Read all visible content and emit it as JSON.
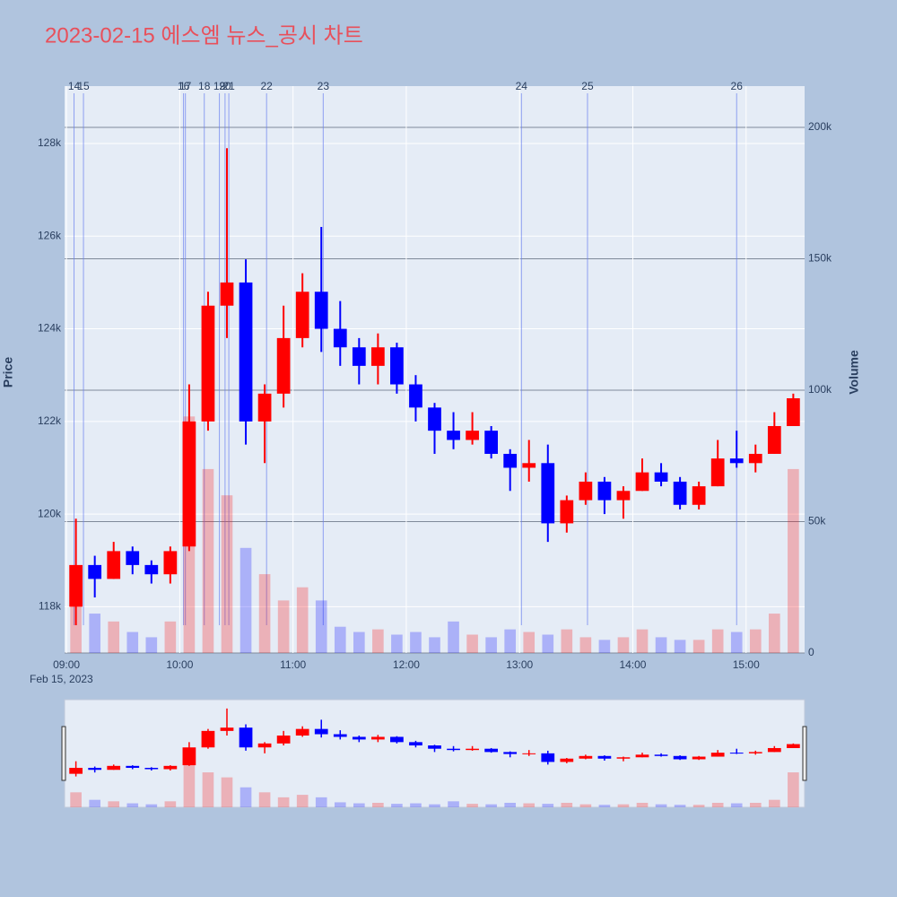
{
  "chart_data": {
    "type": "candlestick",
    "title": "2023-02-15 에스엠 뉴스_공시 차트",
    "y_label": "Price",
    "y2_label": "Volume",
    "x_date_label": "Feb 15, 2023",
    "up_color": "#ff0000",
    "down_color": "#0000ff",
    "x": [
      "2023-02-15 09:00",
      "2023-02-15 09:10",
      "2023-02-15 09:20",
      "2023-02-15 09:30",
      "2023-02-15 09:40",
      "2023-02-15 09:50",
      "2023-02-15 10:00",
      "2023-02-15 10:10",
      "2023-02-15 10:20",
      "2023-02-15 10:30",
      "2023-02-15 10:40",
      "2023-02-15 10:50",
      "2023-02-15 11:00",
      "2023-02-15 11:10",
      "2023-02-15 11:20",
      "2023-02-15 11:30",
      "2023-02-15 11:40",
      "2023-02-15 11:50",
      "2023-02-15 12:00",
      "2023-02-15 12:10",
      "2023-02-15 12:20",
      "2023-02-15 12:30",
      "2023-02-15 12:40",
      "2023-02-15 12:50",
      "2023-02-15 13:00",
      "2023-02-15 13:10",
      "2023-02-15 13:20",
      "2023-02-15 13:30",
      "2023-02-15 13:40",
      "2023-02-15 13:50",
      "2023-02-15 14:00",
      "2023-02-15 14:10",
      "2023-02-15 14:20",
      "2023-02-15 14:30",
      "2023-02-15 14:40",
      "2023-02-15 14:50",
      "2023-02-15 15:00",
      "2023-02-15 15:10",
      "2023-02-15 15:20"
    ],
    "open": [
      118000,
      118900,
      118600,
      119200,
      118900,
      118700,
      119300,
      122000,
      124500,
      125000,
      122000,
      122600,
      123800,
      124800,
      124000,
      123600,
      123200,
      123600,
      122800,
      122300,
      121800,
      121600,
      121800,
      121300,
      121000,
      121100,
      119800,
      120300,
      120700,
      120300,
      120500,
      120900,
      120700,
      120200,
      120600,
      121200,
      121100,
      121300,
      121900
    ],
    "high": [
      119900,
      119100,
      119400,
      119300,
      119000,
      119300,
      122800,
      124800,
      127900,
      125500,
      122800,
      124500,
      125200,
      126200,
      124600,
      123800,
      123900,
      123700,
      123000,
      122400,
      122200,
      122200,
      121900,
      121400,
      121600,
      121500,
      120400,
      120900,
      120800,
      120600,
      121200,
      121100,
      120800,
      120700,
      121600,
      121800,
      121500,
      122200,
      122600
    ],
    "low": [
      117600,
      118200,
      118600,
      118700,
      118500,
      118500,
      119200,
      121800,
      123800,
      121500,
      121100,
      122300,
      123600,
      123500,
      123200,
      122800,
      122800,
      122600,
      122000,
      121300,
      121400,
      121500,
      121200,
      120500,
      120700,
      119400,
      119600,
      120200,
      120000,
      119900,
      120500,
      120600,
      120100,
      120100,
      120600,
      121000,
      120900,
      121300,
      121900
    ],
    "close": [
      118900,
      118600,
      119200,
      118900,
      118700,
      119200,
      122000,
      124500,
      125000,
      122000,
      122600,
      123800,
      124800,
      124000,
      123600,
      123200,
      123600,
      122800,
      122300,
      121800,
      121600,
      121800,
      121300,
      121000,
      121100,
      119800,
      120300,
      120700,
      120300,
      120500,
      120900,
      120700,
      120200,
      120600,
      121200,
      121100,
      121300,
      121900,
      122500
    ],
    "volume": [
      30000,
      15000,
      12000,
      8000,
      6000,
      12000,
      90000,
      70000,
      60000,
      40000,
      30000,
      20000,
      25000,
      20000,
      10000,
      8000,
      9000,
      7000,
      8000,
      6000,
      12000,
      7000,
      6000,
      9000,
      8000,
      7000,
      9000,
      6000,
      5000,
      6000,
      9000,
      6000,
      5000,
      5000,
      9000,
      8000,
      9000,
      15000,
      70000
    ],
    "xlim": [
      "2023-02-15 08:59",
      "2023-02-15 15:31"
    ],
    "xticks": [
      {
        "value": "2023-02-15 09:00",
        "label": "09:00"
      },
      {
        "value": "2023-02-15 10:00",
        "label": "10:00"
      },
      {
        "value": "2023-02-15 11:00",
        "label": "11:00"
      },
      {
        "value": "2023-02-15 12:00",
        "label": "12:00"
      },
      {
        "value": "2023-02-15 13:00",
        "label": "13:00"
      },
      {
        "value": "2023-02-15 14:00",
        "label": "14:00"
      },
      {
        "value": "2023-02-15 15:00",
        "label": "15:00"
      }
    ],
    "ylim": [
      117000,
      129240
    ],
    "yticks": [
      {
        "value": 118000,
        "label": "118k"
      },
      {
        "value": 120000,
        "label": "120k"
      },
      {
        "value": 122000,
        "label": "122k"
      },
      {
        "value": 124000,
        "label": "124k"
      },
      {
        "value": 126000,
        "label": "126k"
      },
      {
        "value": 128000,
        "label": "128k"
      }
    ],
    "y2lim": [
      0,
      215700
    ],
    "y2ticks": [
      0,
      {
        "value": 50000,
        "label": "50k"
      },
      {
        "value": 100000,
        "label": "100k"
      },
      {
        "value": 150000,
        "label": "150k"
      },
      {
        "value": 200000,
        "label": "200k"
      }
    ],
    "annotations": [
      {
        "label": "14",
        "x": "2023-02-15 09:04"
      },
      {
        "label": "15",
        "x": "2023-02-15 09:09"
      },
      {
        "label": "16",
        "x": "2023-02-15 10:02"
      },
      {
        "label": "17",
        "x": "2023-02-15 10:03"
      },
      {
        "label": "18",
        "x": "2023-02-15 10:13"
      },
      {
        "label": "19",
        "x": "2023-02-15 10:21"
      },
      {
        "label": "20",
        "x": "2023-02-15 10:24"
      },
      {
        "label": "21",
        "x": "2023-02-15 10:26"
      },
      {
        "label": "22",
        "x": "2023-02-15 10:46"
      },
      {
        "label": "23",
        "x": "2023-02-15 11:16"
      },
      {
        "label": "24",
        "x": "2023-02-15 13:01"
      },
      {
        "label": "25",
        "x": "2023-02-15 13:36"
      },
      {
        "label": "26",
        "x": "2023-02-15 14:55"
      }
    ]
  }
}
